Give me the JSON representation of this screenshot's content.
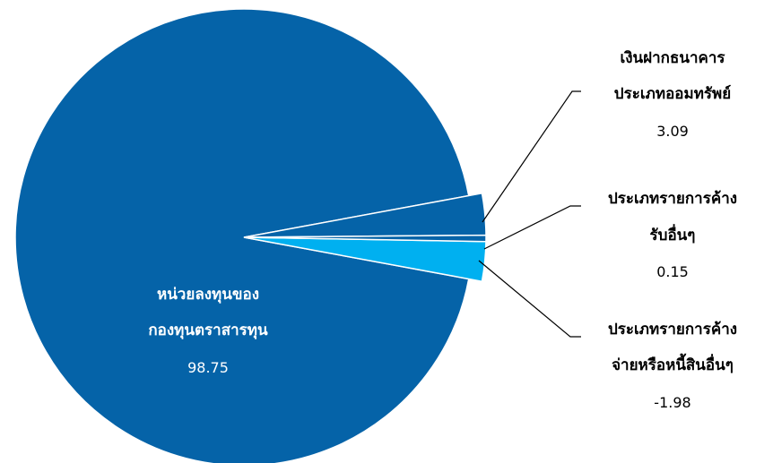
{
  "chart_data": {
    "type": "pie",
    "categories": [
      "เงินฝากธนาคารประเภทออมทรัพย์",
      "ประเภทรายการค้างรับอื่นๆ",
      "ประเภทรายการค้างจ่ายหรือหนี้สินอื่นๆ",
      "หน่วยลงทุนของกองทุนตราสารทุน"
    ],
    "values": [
      3.09,
      0.15,
      -1.98,
      98.75
    ],
    "colors": [
      "#0563A8",
      "#0563A8",
      "#00B0F0",
      "#0563A8"
    ],
    "labels": [
      {
        "lines": [
          "เงินฝากธนาคาร",
          "ประเภทออมทรัพย์"
        ],
        "value": "3.09"
      },
      {
        "lines": [
          "ประเภทรายการค้าง",
          "รับอื่นๆ"
        ],
        "value": "0.15"
      },
      {
        "lines": [
          "ประเภทรายการค้าง",
          "จ่ายหรือหนี้สินอื่นๆ"
        ],
        "value": "-1.98"
      },
      {
        "lines": [
          "หน่วยลงทุนของ",
          "กองทุนตราสารทุน"
        ],
        "value": "98.75"
      }
    ],
    "legend": "none"
  }
}
